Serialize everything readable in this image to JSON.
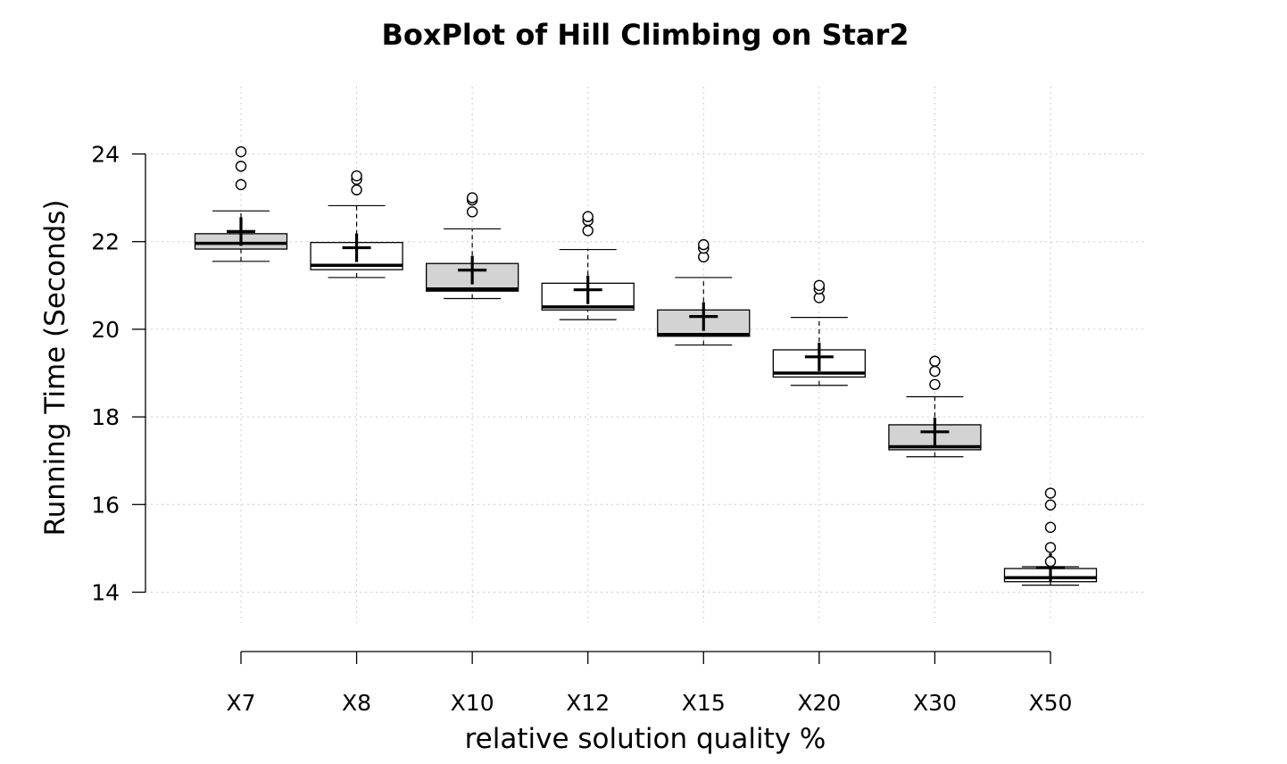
{
  "chart_data": {
    "type": "boxplot",
    "title": "BoxPlot of Hill Climbing on Star2",
    "xlabel": "relative solution quality %",
    "ylabel": "Running Time (Seconds)",
    "ylim": [
      12.6,
      25.5
    ],
    "yticks": [
      14,
      16,
      18,
      20,
      22,
      24
    ],
    "grid": true,
    "fill_colors": [
      "#d3d3d3",
      "#ffffff"
    ],
    "categories": [
      "X7",
      "X8",
      "X10",
      "X12",
      "X15",
      "X20",
      "X30",
      "X50"
    ],
    "boxes": [
      {
        "category": "X7",
        "whisker_low": 21.55,
        "q1": 21.83,
        "median": 21.96,
        "q3": 22.18,
        "whisker_high": 22.7,
        "mean": 22.23,
        "outliers": [
          23.3,
          23.72,
          24.05
        ]
      },
      {
        "category": "X8",
        "whisker_low": 21.18,
        "q1": 21.36,
        "median": 21.46,
        "q3": 21.98,
        "whisker_high": 22.82,
        "mean": 21.86,
        "outliers": [
          23.18,
          23.42,
          23.5
        ]
      },
      {
        "category": "X10",
        "whisker_low": 20.7,
        "q1": 20.87,
        "median": 20.92,
        "q3": 21.5,
        "whisker_high": 22.29,
        "mean": 21.35,
        "outliers": [
          22.68,
          22.95,
          23.0
        ]
      },
      {
        "category": "X12",
        "whisker_low": 20.22,
        "q1": 20.44,
        "median": 20.51,
        "q3": 21.05,
        "whisker_high": 21.82,
        "mean": 20.9,
        "outliers": [
          22.25,
          22.48,
          22.57
        ]
      },
      {
        "category": "X15",
        "whisker_low": 19.64,
        "q1": 19.84,
        "median": 19.88,
        "q3": 20.44,
        "whisker_high": 21.18,
        "mean": 20.29,
        "outliers": [
          21.65,
          21.85,
          21.93
        ]
      },
      {
        "category": "X20",
        "whisker_low": 18.72,
        "q1": 18.91,
        "median": 19.0,
        "q3": 19.53,
        "whisker_high": 20.27,
        "mean": 19.37,
        "outliers": [
          20.72,
          20.92,
          21.0
        ]
      },
      {
        "category": "X30",
        "whisker_low": 17.09,
        "q1": 17.25,
        "median": 17.32,
        "q3": 17.82,
        "whisker_high": 18.46,
        "mean": 17.66,
        "outliers": [
          18.74,
          19.04,
          19.27
        ]
      },
      {
        "category": "X50",
        "whisker_low": 14.16,
        "q1": 14.24,
        "median": 14.33,
        "q3": 14.54,
        "whisker_high": 14.58,
        "mean": 14.56,
        "outliers": [
          14.7,
          15.02,
          15.48,
          15.99,
          16.26
        ]
      }
    ]
  }
}
